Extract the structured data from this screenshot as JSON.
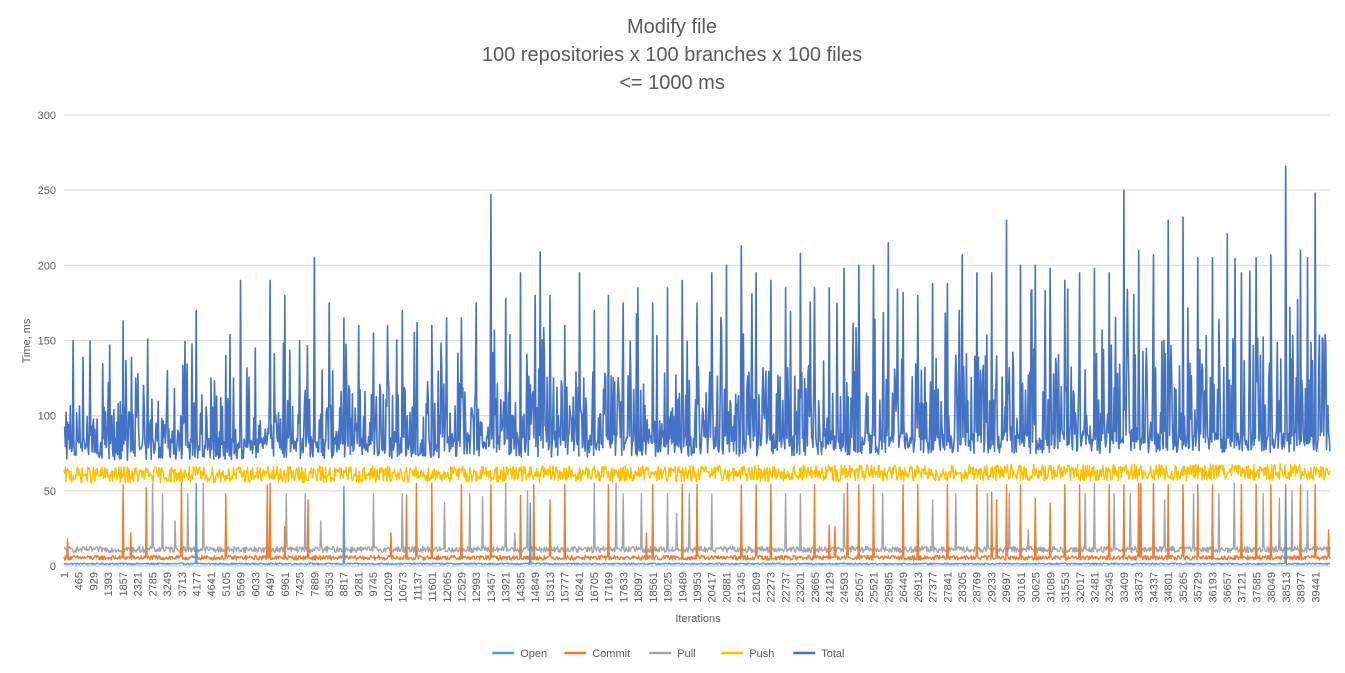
{
  "chart_data": {
    "type": "line",
    "title_lines": [
      "Modify file",
      "100 repositories x 100 branches x 100 files",
      "<= 1000 ms"
    ],
    "xlabel": "Iterations",
    "ylabel": "Time, ms",
    "ylim": [
      0,
      300
    ],
    "yticks": [
      0,
      50,
      100,
      150,
      200,
      250,
      300
    ],
    "x_range": [
      1,
      39904
    ],
    "x_ticks": [
      1,
      465,
      929,
      1393,
      1857,
      2321,
      2785,
      3249,
      3713,
      4177,
      4641,
      5105,
      5569,
      6033,
      6497,
      6961,
      7425,
      7889,
      8353,
      8817,
      9281,
      9745,
      10209,
      10673,
      11137,
      11601,
      12065,
      12529,
      12993,
      13457,
      13921,
      14385,
      14849,
      15313,
      15777,
      16241,
      16705,
      17169,
      17633,
      18097,
      18561,
      19025,
      19489,
      19953,
      20417,
      20881,
      21345,
      21809,
      22273,
      22737,
      23201,
      23665,
      24129,
      24593,
      25057,
      25521,
      25985,
      26449,
      26913,
      27377,
      27841,
      28305,
      28769,
      29233,
      29697,
      30161,
      30625,
      31089,
      31553,
      32017,
      32481,
      32945,
      33409,
      33873,
      34337,
      34801,
      35265,
      35729,
      36193,
      36657,
      37121,
      37585,
      38049,
      38513,
      38977,
      39441
    ],
    "grid": "horizontal",
    "legend_position": "bottom",
    "series": [
      {
        "name": "Open",
        "color": "#5B9BD5",
        "baseline": 1,
        "noise": 1,
        "spikes": [
          [
            4177,
            55
          ],
          [
            8817,
            53
          ],
          [
            14700,
            42
          ],
          [
            38513,
            50
          ]
        ]
      },
      {
        "name": "Commit",
        "color": "#ED7D31",
        "baseline": 5,
        "noise": 2,
        "spikes": [
          [
            120,
            18
          ],
          [
            1857,
            54
          ],
          [
            2100,
            22
          ],
          [
            2600,
            52
          ],
          [
            3713,
            55
          ],
          [
            5105,
            48
          ],
          [
            6400,
            54
          ],
          [
            6500,
            55
          ],
          [
            6961,
            26
          ],
          [
            7700,
            44
          ],
          [
            8817,
            50
          ],
          [
            10300,
            22
          ],
          [
            10800,
            47
          ],
          [
            11100,
            55
          ],
          [
            11600,
            55
          ],
          [
            12529,
            54
          ],
          [
            13460,
            54
          ],
          [
            14385,
            47
          ],
          [
            14800,
            54
          ],
          [
            15313,
            44
          ],
          [
            15777,
            54
          ],
          [
            17169,
            54
          ],
          [
            18350,
            22
          ],
          [
            18561,
            54
          ],
          [
            19489,
            54
          ],
          [
            19953,
            54
          ],
          [
            21345,
            54
          ],
          [
            21809,
            54
          ],
          [
            22273,
            54
          ],
          [
            23665,
            54
          ],
          [
            24129,
            27
          ],
          [
            24300,
            26
          ],
          [
            24700,
            55
          ],
          [
            25057,
            54
          ],
          [
            25521,
            54
          ],
          [
            26449,
            54
          ],
          [
            26913,
            54
          ],
          [
            27841,
            54
          ],
          [
            28769,
            54
          ],
          [
            29233,
            49
          ],
          [
            29400,
            44
          ],
          [
            29697,
            54
          ],
          [
            30161,
            54
          ],
          [
            30625,
            45
          ],
          [
            31089,
            42
          ],
          [
            31553,
            54
          ],
          [
            32017,
            54
          ],
          [
            32945,
            54
          ],
          [
            33409,
            54
          ],
          [
            33873,
            55
          ],
          [
            33950,
            55
          ],
          [
            34337,
            54
          ],
          [
            34801,
            54
          ],
          [
            35265,
            54
          ],
          [
            35729,
            54
          ],
          [
            36193,
            54
          ],
          [
            37121,
            54
          ],
          [
            37585,
            54
          ],
          [
            38049,
            54
          ],
          [
            38513,
            54
          ],
          [
            38977,
            54
          ],
          [
            39441,
            54
          ],
          [
            39850,
            24
          ]
        ]
      },
      {
        "name": "Pull",
        "color": "#A5A5A5",
        "baseline": 11,
        "noise": 2,
        "spikes": [
          [
            2785,
            55
          ],
          [
            3100,
            48
          ],
          [
            3500,
            30
          ],
          [
            3900,
            48
          ],
          [
            4400,
            55
          ],
          [
            7000,
            48
          ],
          [
            7600,
            48
          ],
          [
            8100,
            30
          ],
          [
            9745,
            48
          ],
          [
            10673,
            48
          ],
          [
            12000,
            42
          ],
          [
            12800,
            48
          ],
          [
            13200,
            46
          ],
          [
            13921,
            55
          ],
          [
            14200,
            22
          ],
          [
            14600,
            50
          ],
          [
            16705,
            55
          ],
          [
            17400,
            55
          ],
          [
            17633,
            48
          ],
          [
            18200,
            48
          ],
          [
            19025,
            48
          ],
          [
            19300,
            35
          ],
          [
            19700,
            48
          ],
          [
            20417,
            48
          ],
          [
            22737,
            48
          ],
          [
            23201,
            48
          ],
          [
            24593,
            48
          ],
          [
            25800,
            48
          ],
          [
            27377,
            44
          ],
          [
            28100,
            48
          ],
          [
            29100,
            48
          ],
          [
            29800,
            48
          ],
          [
            30400,
            24
          ],
          [
            31553,
            48
          ],
          [
            32200,
            48
          ],
          [
            32481,
            55
          ],
          [
            33100,
            48
          ],
          [
            33600,
            48
          ],
          [
            34337,
            55
          ],
          [
            34700,
            44
          ],
          [
            35265,
            48
          ],
          [
            35600,
            48
          ],
          [
            36400,
            48
          ],
          [
            36900,
            55
          ],
          [
            37800,
            48
          ],
          [
            38300,
            45
          ],
          [
            38700,
            50
          ],
          [
            39200,
            50
          ]
        ]
      },
      {
        "name": "Push",
        "color": "#FFC000",
        "baseline": 60,
        "noise": 4,
        "spikes": []
      },
      {
        "name": "Total",
        "color": "#4472C4",
        "baseline": 80,
        "noise": 10,
        "spikes": [
          [
            300,
            150
          ],
          [
            1857,
            163
          ],
          [
            4177,
            170
          ],
          [
            5569,
            190
          ],
          [
            6497,
            190
          ],
          [
            7889,
            205
          ],
          [
            13457,
            247
          ],
          [
            15000,
            209
          ],
          [
            16241,
            195
          ],
          [
            21345,
            213
          ],
          [
            23201,
            208
          ],
          [
            25985,
            215
          ],
          [
            29697,
            230
          ],
          [
            33409,
            250
          ],
          [
            36657,
            221
          ],
          [
            38513,
            266
          ],
          [
            39441,
            248
          ],
          [
            1393,
            122
          ],
          [
            2321,
            128
          ],
          [
            3249,
            130
          ],
          [
            4641,
            125
          ],
          [
            5105,
            140
          ],
          [
            6033,
            145
          ],
          [
            6961,
            180
          ],
          [
            7425,
            150
          ],
          [
            8353,
            175
          ],
          [
            8817,
            165
          ],
          [
            9281,
            160
          ],
          [
            9745,
            155
          ],
          [
            10209,
            160
          ],
          [
            10673,
            170
          ],
          [
            11137,
            162
          ],
          [
            11601,
            160
          ],
          [
            12065,
            165
          ],
          [
            12529,
            165
          ],
          [
            12993,
            175
          ],
          [
            13921,
            178
          ],
          [
            14385,
            195
          ],
          [
            14849,
            180
          ],
          [
            15313,
            180
          ],
          [
            15777,
            160
          ],
          [
            16705,
            170
          ],
          [
            17169,
            180
          ],
          [
            17633,
            175
          ],
          [
            18097,
            185
          ],
          [
            18561,
            175
          ],
          [
            19025,
            185
          ],
          [
            19489,
            190
          ],
          [
            19953,
            175
          ],
          [
            20417,
            195
          ],
          [
            20881,
            200
          ],
          [
            21809,
            195
          ],
          [
            22273,
            190
          ],
          [
            22737,
            185
          ],
          [
            23665,
            185
          ],
          [
            24129,
            185
          ],
          [
            24593,
            198
          ],
          [
            25057,
            200
          ],
          [
            25521,
            200
          ],
          [
            26449,
            182
          ],
          [
            26913,
            180
          ],
          [
            27377,
            188
          ],
          [
            27841,
            188
          ],
          [
            28305,
            207
          ],
          [
            28769,
            195
          ],
          [
            29233,
            195
          ],
          [
            30161,
            200
          ],
          [
            30625,
            200
          ],
          [
            31089,
            198
          ],
          [
            31553,
            190
          ],
          [
            32017,
            195
          ],
          [
            32481,
            198
          ],
          [
            32945,
            195
          ],
          [
            33873,
            210
          ],
          [
            34337,
            207
          ],
          [
            34801,
            230
          ],
          [
            35265,
            232
          ],
          [
            35729,
            205
          ],
          [
            36193,
            205
          ],
          [
            37121,
            195
          ],
          [
            37585,
            205
          ],
          [
            38049,
            207
          ],
          [
            38977,
            210
          ],
          [
            39200,
            205
          ]
        ]
      }
    ]
  }
}
